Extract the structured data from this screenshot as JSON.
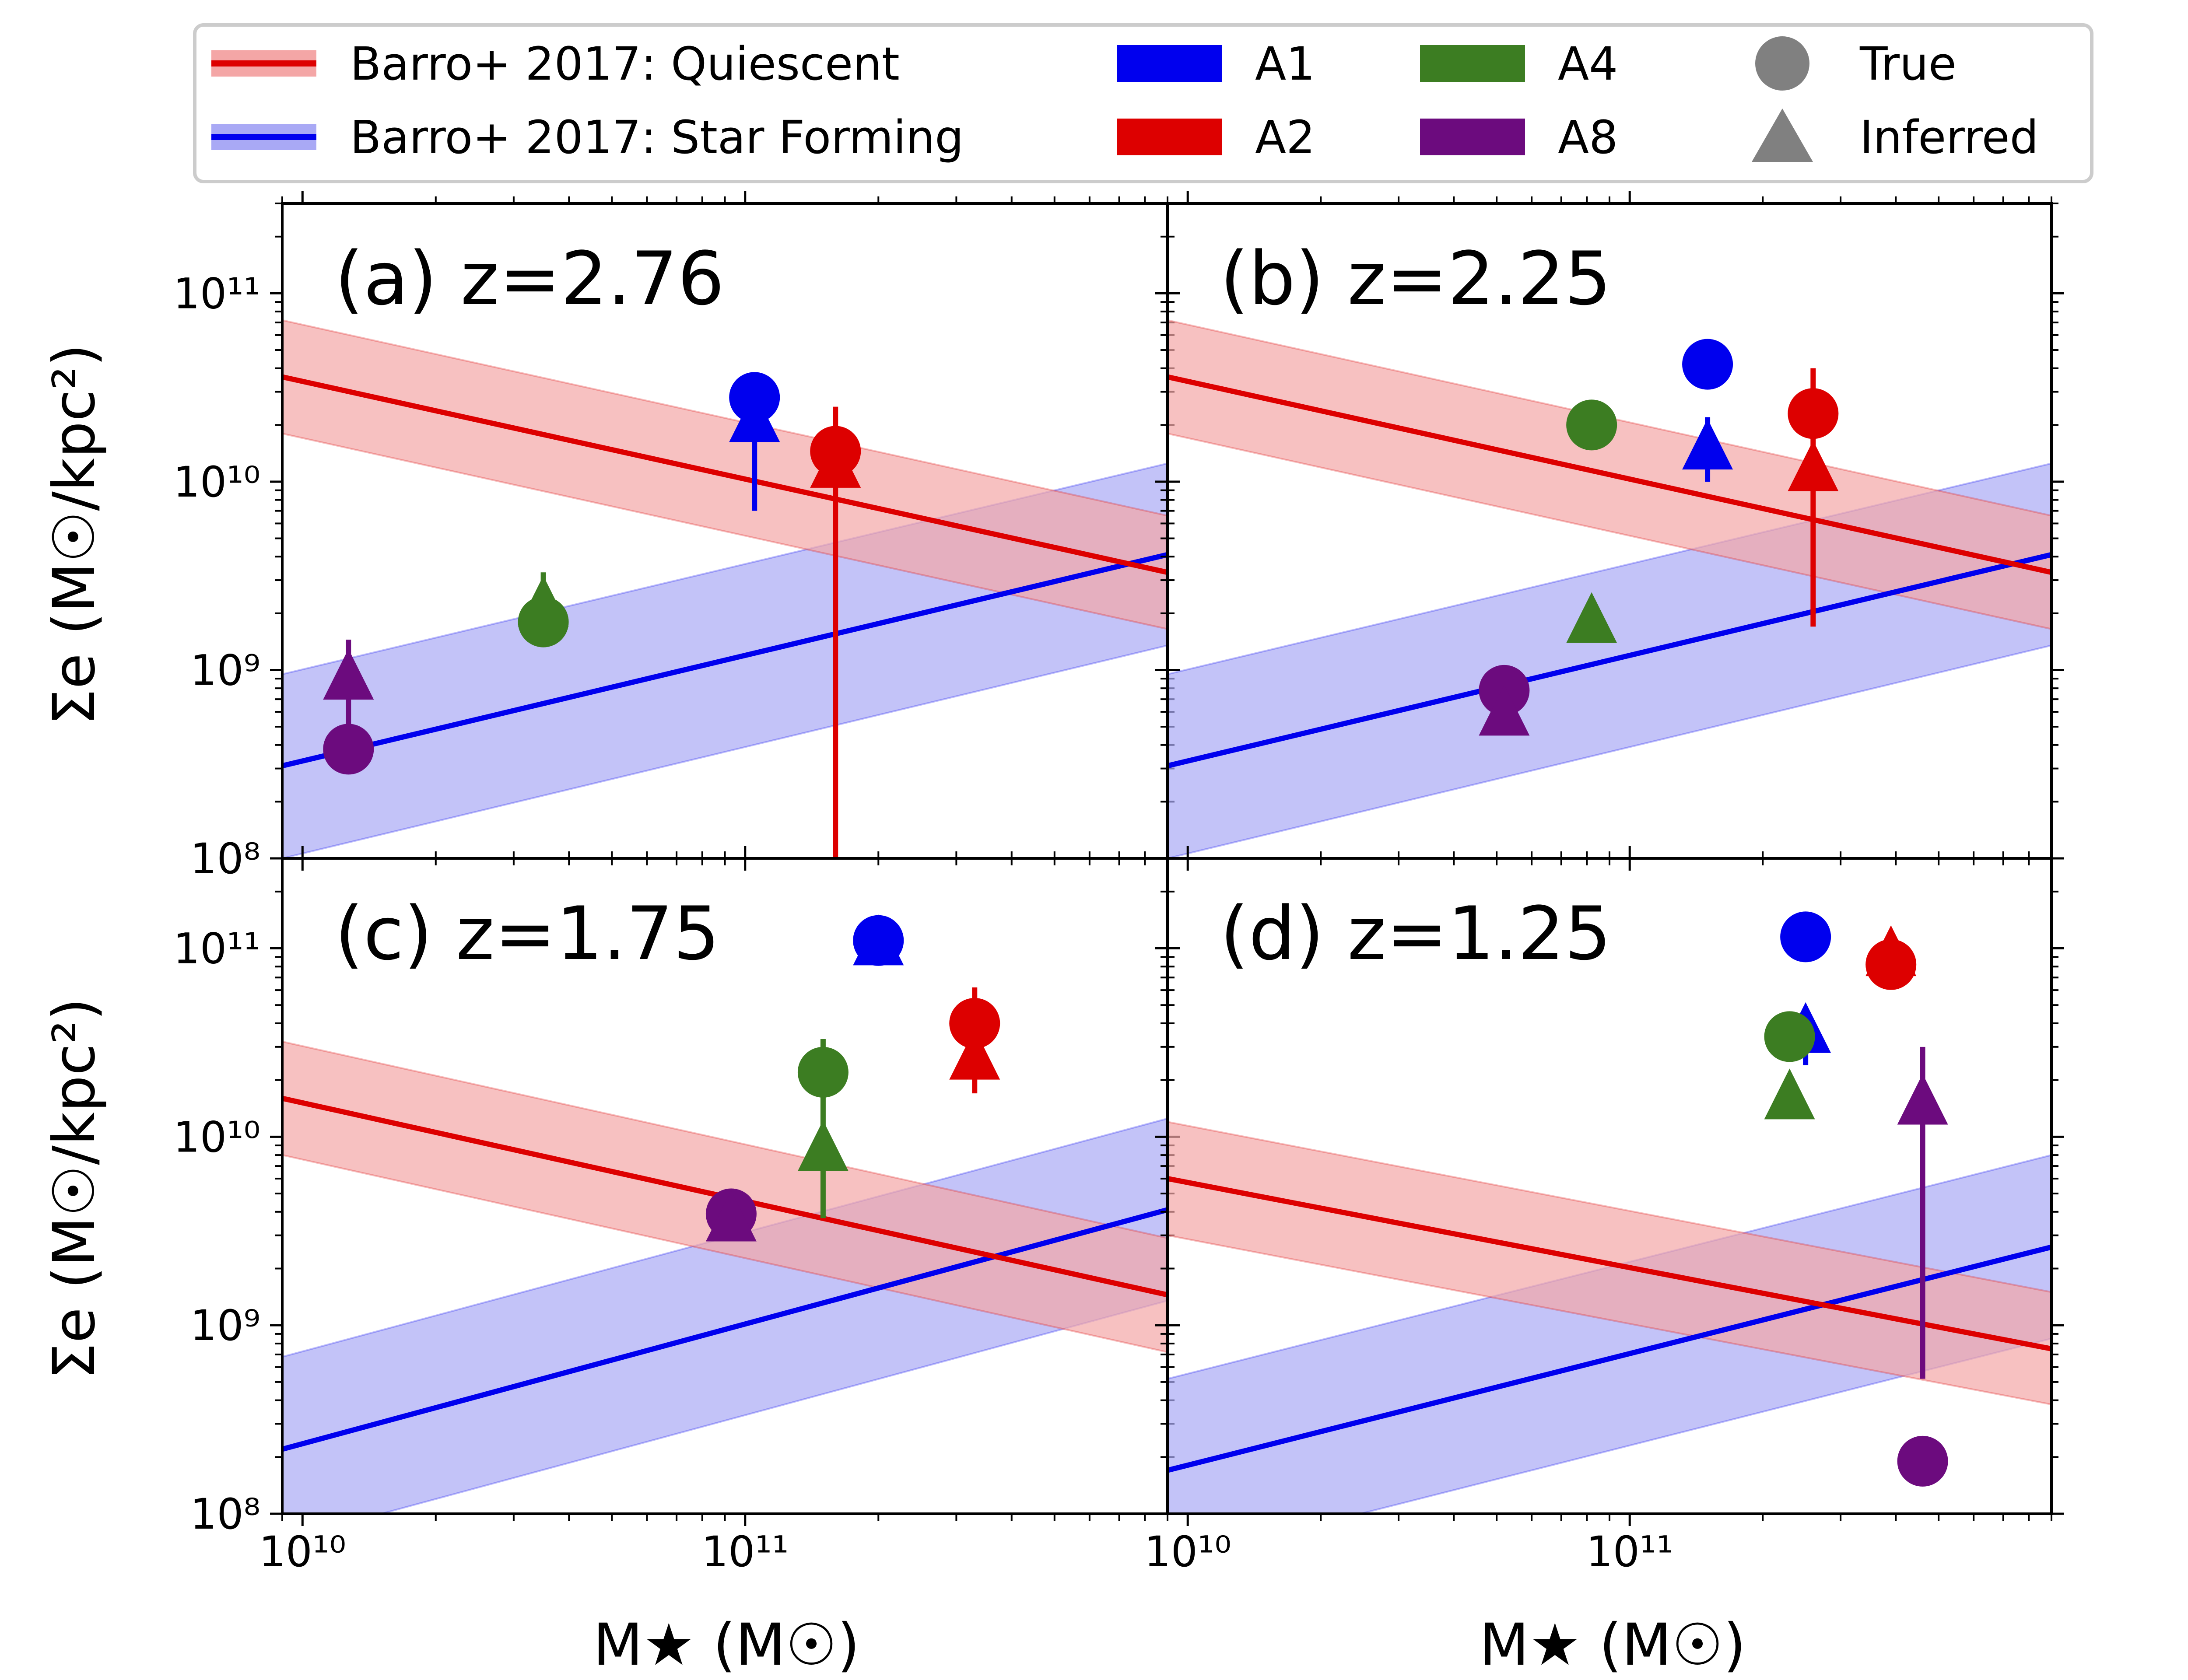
{
  "colors": {
    "quiescent_line": "#dd0000",
    "quiescent_band": "#f4a6a6",
    "sf_line": "#0000ee",
    "sf_band": "#a9a9f5",
    "A1": "#0000ee",
    "A2": "#dd0000",
    "A4": "#3c7d22",
    "A8": "#6c0b7e",
    "legend_marker": "#808080"
  },
  "legend": {
    "quiescent": "Barro+ 2017: Quiescent",
    "star_forming": "Barro+ 2017: Star Forming",
    "A1": "A1",
    "A2": "A2",
    "A4": "A4",
    "A8": "A8",
    "true": "True",
    "inferred": "Inferred"
  },
  "axes": {
    "xlabel": "M★ (M☉)",
    "ylabel": "Σe (M☉/kpc²)",
    "x_ticks": [
      "10¹⁰",
      "10¹¹"
    ],
    "y_ticks": [
      "10⁸",
      "10⁹",
      "10¹⁰",
      "10¹¹"
    ]
  },
  "chart_data": [
    {
      "type": "scatter",
      "panel": "(a) z=2.76",
      "xlim": [
        9000000000.0,
        900000000000.0
      ],
      "ylim": [
        100000000.0,
        300000000000.0
      ],
      "x_scale": "log",
      "y_scale": "log",
      "quiescent": {
        "x": [
          9000000000.0,
          900000000000.0
        ],
        "y": [
          36000000000.0,
          3300000000.0
        ],
        "lower": [
          18000000000.0,
          1650000000.0
        ],
        "upper": [
          72000000000.0,
          6600000000.0
        ]
      },
      "star_forming": {
        "x": [
          9000000000.0,
          900000000000.0
        ],
        "y": [
          310000000.0,
          4100000000.0
        ],
        "lower": [
          100000000.0,
          1350000000.0
        ],
        "upper": [
          950000000.0,
          12500000000.0
        ]
      },
      "points": [
        {
          "series": "A1",
          "marker": "true",
          "x": 105000000000.0,
          "y": 28000000000.0
        },
        {
          "series": "A1",
          "marker": "inferred",
          "x": 105000000000.0,
          "y": 21000000000.0,
          "err_low": 7000000000.0,
          "err_high": 26000000000.0
        },
        {
          "series": "A2",
          "marker": "true",
          "x": 160000000000.0,
          "y": 14500000000.0
        },
        {
          "series": "A2",
          "marker": "inferred",
          "x": 160000000000.0,
          "y": 12000000000.0,
          "err_low": 100000000.0,
          "err_high": 25000000000.0
        },
        {
          "series": "A4",
          "marker": "true",
          "x": 35000000000.0,
          "y": 1800000000.0
        },
        {
          "series": "A4",
          "marker": "inferred",
          "x": 35000000000.0,
          "y": 2200000000.0,
          "err_low": 1800000000.0,
          "err_high": 3300000000.0
        },
        {
          "series": "A8",
          "marker": "true",
          "x": 12700000000.0,
          "y": 380000000.0
        },
        {
          "series": "A8",
          "marker": "inferred",
          "x": 12700000000.0,
          "y": 900000000.0,
          "err_low": 380000000.0,
          "err_high": 1450000000.0
        }
      ]
    },
    {
      "type": "scatter",
      "panel": "(b) z=2.25",
      "xlim": [
        9000000000.0,
        900000000000.0
      ],
      "ylim": [
        100000000.0,
        300000000000.0
      ],
      "x_scale": "log",
      "y_scale": "log",
      "quiescent": {
        "x": [
          9000000000.0,
          900000000000.0
        ],
        "y": [
          36000000000.0,
          3300000000.0
        ],
        "lower": [
          18000000000.0,
          1650000000.0
        ],
        "upper": [
          72000000000.0,
          6600000000.0
        ]
      },
      "star_forming": {
        "x": [
          9000000000.0,
          900000000000.0
        ],
        "y": [
          310000000.0,
          4100000000.0
        ],
        "lower": [
          100000000.0,
          1350000000.0
        ],
        "upper": [
          950000000.0,
          12500000000.0
        ]
      },
      "points": [
        {
          "series": "A1",
          "marker": "true",
          "x": 150000000000.0,
          "y": 42000000000.0
        },
        {
          "series": "A1",
          "marker": "inferred",
          "x": 150000000000.0,
          "y": 15000000000.0,
          "err_low": 10000000000.0,
          "err_high": 22000000000.0
        },
        {
          "series": "A2",
          "marker": "true",
          "x": 260000000000.0,
          "y": 23000000000.0
        },
        {
          "series": "A2",
          "marker": "inferred",
          "x": 260000000000.0,
          "y": 11500000000.0,
          "err_low": 1700000000.0,
          "err_high": 40000000000.0
        },
        {
          "series": "A4",
          "marker": "true",
          "x": 82000000000.0,
          "y": 20000000000.0
        },
        {
          "series": "A4",
          "marker": "inferred",
          "x": 82000000000.0,
          "y": 1800000000.0
        },
        {
          "series": "A8",
          "marker": "true",
          "x": 52000000000.0,
          "y": 780000000.0
        },
        {
          "series": "A8",
          "marker": "inferred",
          "x": 52000000000.0,
          "y": 580000000.0
        }
      ]
    },
    {
      "type": "scatter",
      "panel": "(c) z=1.75",
      "xlim": [
        9000000000.0,
        900000000000.0
      ],
      "ylim": [
        100000000.0,
        300000000000.0
      ],
      "x_scale": "log",
      "y_scale": "log",
      "quiescent": {
        "x": [
          9000000000.0,
          900000000000.0
        ],
        "y": [
          16000000000.0,
          1450000000.0
        ],
        "lower": [
          8000000000.0,
          720000000.0
        ],
        "upper": [
          32000000000.0,
          2900000000.0
        ]
      },
      "star_forming": {
        "x": [
          9000000000.0,
          900000000000.0
        ],
        "y": [
          220000000.0,
          4100000000.0
        ],
        "lower": [
          72000000.0,
          1350000000.0
        ],
        "upper": [
          680000000.0,
          12500000000.0
        ]
      },
      "points": [
        {
          "series": "A1",
          "marker": "true",
          "x": 200000000000.0,
          "y": 110000000000.0
        },
        {
          "series": "A1",
          "marker": "inferred",
          "x": 200000000000.0,
          "y": 105000000000.0
        },
        {
          "series": "A2",
          "marker": "true",
          "x": 330000000000.0,
          "y": 40000000000.0
        },
        {
          "series": "A2",
          "marker": "inferred",
          "x": 330000000000.0,
          "y": 26000000000.0,
          "err_low": 17000000000.0,
          "err_high": 62000000000.0
        },
        {
          "series": "A4",
          "marker": "true",
          "x": 150000000000.0,
          "y": 22000000000.0
        },
        {
          "series": "A4",
          "marker": "inferred",
          "x": 150000000000.0,
          "y": 8500000000.0,
          "err_low": 3700000000.0,
          "err_high": 33000000000.0
        },
        {
          "series": "A8",
          "marker": "true",
          "x": 93000000000.0,
          "y": 3900000000.0
        },
        {
          "series": "A8",
          "marker": "inferred",
          "x": 93000000000.0,
          "y": 3600000000.0
        }
      ]
    },
    {
      "type": "scatter",
      "panel": "(d) z=1.25",
      "xlim": [
        9000000000.0,
        900000000000.0
      ],
      "ylim": [
        100000000.0,
        300000000000.0
      ],
      "x_scale": "log",
      "y_scale": "log",
      "quiescent": {
        "x": [
          9000000000.0,
          900000000000.0
        ],
        "y": [
          6000000000.0,
          750000000.0
        ],
        "lower": [
          3000000000.0,
          380000000.0
        ],
        "upper": [
          12000000000.0,
          1500000000.0
        ]
      },
      "star_forming": {
        "x": [
          9000000000.0,
          900000000000.0
        ],
        "y": [
          170000000.0,
          2600000000.0
        ],
        "lower": [
          55000000.0,
          850000000.0
        ],
        "upper": [
          520000000.0,
          8000000000.0
        ]
      },
      "points": [
        {
          "series": "A1",
          "marker": "true",
          "x": 250000000000.0,
          "y": 115000000000.0
        },
        {
          "series": "A1",
          "marker": "inferred",
          "x": 250000000000.0,
          "y": 36000000000.0,
          "err_low": 24000000000.0,
          "err_high": 47000000000.0
        },
        {
          "series": "A2",
          "marker": "true",
          "x": 390000000000.0,
          "y": 82000000000.0
        },
        {
          "series": "A2",
          "marker": "inferred",
          "x": 390000000000.0,
          "y": 92000000000.0
        },
        {
          "series": "A4",
          "marker": "true",
          "x": 230000000000.0,
          "y": 34000000000.0
        },
        {
          "series": "A4",
          "marker": "inferred",
          "x": 230000000000.0,
          "y": 16000000000.0
        },
        {
          "series": "A8",
          "marker": "true",
          "x": 460000000000.0,
          "y": 190000000.0
        },
        {
          "series": "A8",
          "marker": "inferred",
          "x": 460000000000.0,
          "y": 15000000000.0,
          "err_low": 520000000.0,
          "err_high": 30000000000.0
        }
      ]
    }
  ]
}
